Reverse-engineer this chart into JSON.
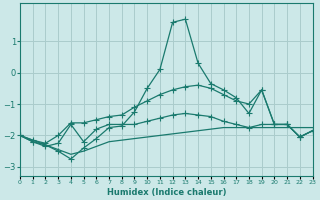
{
  "xlabel": "Humidex (Indice chaleur)",
  "background_color": "#cce8e8",
  "grid_color": "#aacccc",
  "line_color": "#1a7a6e",
  "x": [
    0,
    1,
    2,
    3,
    4,
    5,
    6,
    7,
    8,
    9,
    10,
    11,
    12,
    13,
    14,
    15,
    16,
    17,
    18,
    19,
    20,
    21,
    22,
    23
  ],
  "line1_main": [
    -2.0,
    -2.2,
    -2.3,
    -2.5,
    -2.75,
    -2.4,
    -2.1,
    -1.75,
    -1.7,
    -1.25,
    -0.5,
    0.1,
    1.6,
    1.7,
    0.3,
    -0.35,
    -0.55,
    -0.8,
    -1.3,
    -0.55,
    -1.65,
    -1.65,
    -2.05,
    -1.85
  ],
  "line2_upper": [
    -2.0,
    -2.15,
    -2.25,
    -2.0,
    -1.6,
    -1.6,
    -1.5,
    -1.4,
    -1.35,
    -1.1,
    -0.9,
    -0.7,
    -0.55,
    -0.45,
    -0.4,
    -0.5,
    -0.7,
    -0.9,
    -1.0,
    -0.55,
    -1.65,
    -1.65,
    -2.05,
    -1.85
  ],
  "line3_lower": [
    -2.0,
    -2.2,
    -2.35,
    -2.25,
    -1.65,
    -2.2,
    -1.8,
    -1.65,
    -1.65,
    -1.65,
    -1.55,
    -1.45,
    -1.35,
    -1.3,
    -1.35,
    -1.4,
    -1.55,
    -1.65,
    -1.75,
    -1.65,
    -1.65,
    -1.65,
    -2.05,
    -1.85
  ],
  "line4_flat": [
    -2.0,
    -2.15,
    -2.3,
    -2.45,
    -2.6,
    -2.5,
    -2.35,
    -2.2,
    -2.15,
    -2.1,
    -2.05,
    -2.0,
    -1.95,
    -1.9,
    -1.85,
    -1.8,
    -1.75,
    -1.75,
    -1.75,
    -1.75,
    -1.75,
    -1.75,
    -1.75,
    -1.75
  ],
  "xlim": [
    0,
    23
  ],
  "ylim": [
    -3.3,
    2.2
  ],
  "yticks": [
    -3,
    -2,
    -1,
    0,
    1
  ],
  "xtick_labels": [
    "0",
    "1",
    "2",
    "3",
    "4",
    "5",
    "6",
    "7",
    "8",
    "9",
    "10",
    "11",
    "12",
    "13",
    "14",
    "15",
    "16",
    "17",
    "18",
    "19",
    "20",
    "21",
    "22",
    "23"
  ]
}
